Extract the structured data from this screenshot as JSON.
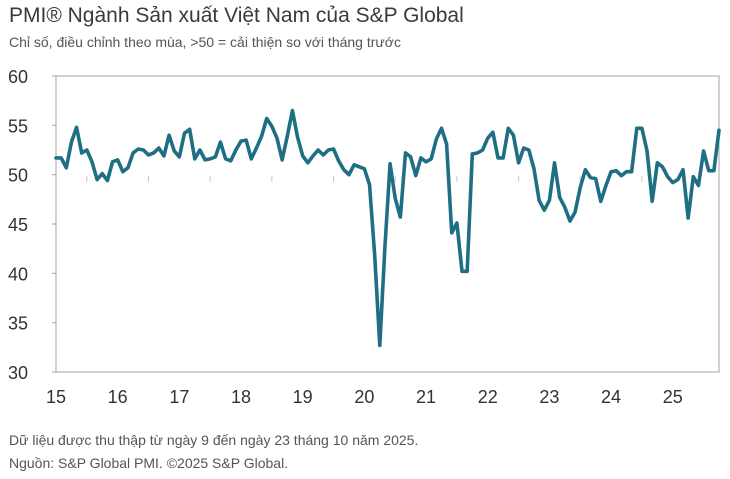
{
  "title": "PMI® Ngành Sản xuất Việt Nam của S&P Global",
  "subtitle": "Chỉ số, điều chỉnh theo mùa, >50 = cải thiện so với tháng trước",
  "footnotes": [
    "Dữ liệu được thu thập từ ngày 9 đến ngày 23 tháng 10 năm 2025.",
    "Nguồn: S&P Global PMI. ©2025 S&P Global."
  ],
  "chart_data": {
    "type": "line",
    "title": "PMI® Ngành Sản xuất Việt Nam của S&P Global",
    "subtitle": "Chỉ số, điều chỉnh theo mùa, >50 = cải thiện so với tháng trước",
    "xlabel": "",
    "ylabel": "",
    "ylim": [
      30,
      60
    ],
    "yticks": [
      30,
      35,
      40,
      45,
      50,
      55,
      60
    ],
    "xtick_labels": [
      "15",
      "16",
      "17",
      "18",
      "19",
      "20",
      "21",
      "22",
      "23",
      "24",
      "25"
    ],
    "x_start": "2015-01",
    "x_end": "2025-10",
    "grid": false,
    "color": "#1f6f84",
    "series": [
      {
        "values": [
          51.7,
          51.7,
          50.7,
          53.3,
          54.8,
          52.2,
          52.5,
          51.3,
          49.5,
          50.1,
          49.4,
          51.3,
          51.5,
          50.3,
          50.7,
          52.2,
          52.6,
          52.5,
          52.0,
          52.2,
          52.7,
          51.9,
          54.0,
          52.4,
          51.8,
          54.2,
          54.6,
          51.6,
          52.5,
          51.5,
          51.6,
          51.8,
          53.3,
          51.6,
          51.4,
          52.5,
          53.4,
          53.5,
          51.6,
          52.7,
          53.9,
          55.7,
          54.9,
          53.7,
          51.5,
          53.9,
          56.5,
          53.8,
          51.9,
          51.2,
          51.9,
          52.5,
          52.0,
          52.5,
          52.6,
          51.4,
          50.5,
          50.0,
          51.0,
          50.8,
          50.6,
          49.0,
          41.9,
          32.7,
          42.7,
          51.1,
          47.6,
          45.7,
          52.2,
          51.8,
          49.9,
          51.7,
          51.3,
          51.6,
          53.6,
          54.7,
          53.1,
          44.1,
          45.1,
          40.2,
          40.2,
          52.1,
          52.2,
          52.5,
          53.7,
          54.3,
          51.7,
          51.7,
          54.7,
          54.0,
          51.2,
          52.7,
          52.5,
          50.6,
          47.4,
          46.4,
          47.4,
          51.2,
          47.7,
          46.7,
          45.3,
          46.2,
          48.7,
          50.5,
          49.7,
          49.6,
          47.3,
          48.9,
          50.3,
          50.4,
          49.9,
          50.3,
          50.3,
          54.7,
          54.7,
          52.4,
          47.3,
          51.2,
          50.8,
          49.8,
          49.2,
          49.5,
          50.5,
          45.6,
          49.8,
          48.9,
          52.4,
          50.4,
          50.4,
          54.5
        ]
      }
    ]
  }
}
